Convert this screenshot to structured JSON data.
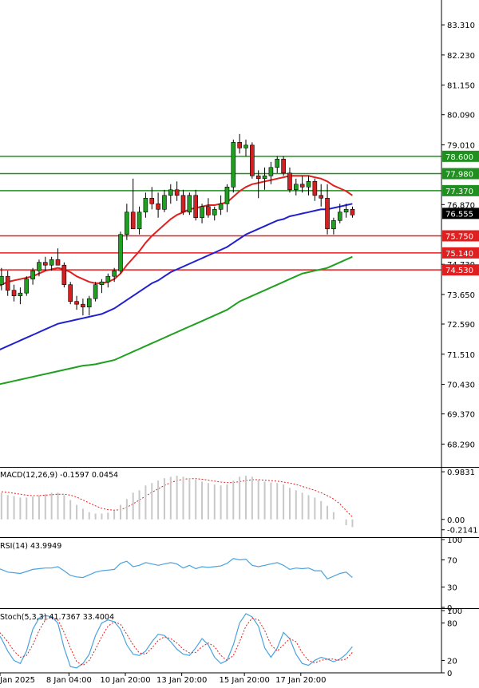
{
  "colors": {
    "candle_bull": "#20a020",
    "candle_bear": "#d42020",
    "ma_fast": "#e02020",
    "ma_mid": "#2020d0",
    "ma_slow": "#20a020",
    "resistance_line": "#1f8f1f",
    "support_line": "#e02020",
    "macd_hist": "#c8c8c8",
    "macd_signal": "#e02020",
    "rsi_line": "#4aa3df",
    "stoch_main": "#4aa3df",
    "stoch_signal": "#e02020",
    "axis": "#000000",
    "price_tag_bg": "#000000"
  },
  "chart_data": [
    {
      "type": "candlestick",
      "ylim": [
        67.5,
        84.2
      ],
      "yticks": [
        "83.310",
        "82.230",
        "81.150",
        "80.090",
        "79.010",
        "76.870",
        "74.730",
        "73.650",
        "72.590",
        "71.510",
        "70.430",
        "69.370",
        "68.290"
      ],
      "current_price": "76.555",
      "resistance_levels": [
        "78.600",
        "77.980",
        "77.370"
      ],
      "support_levels": [
        "75.750",
        "75.140",
        "74.530"
      ],
      "x_labels": [
        "Jan 2025",
        "8 Jan 04:00",
        "10 Jan 20:00",
        "13 Jan 20:00",
        "15 Jan 20:00",
        "17 Jan 20:00"
      ],
      "candles": [
        [
          73.9,
          74.2,
          73.5,
          74.0
        ],
        [
          74.0,
          74.6,
          73.8,
          74.3
        ],
        [
          74.3,
          74.5,
          73.6,
          73.8
        ],
        [
          73.8,
          74.0,
          73.4,
          73.6
        ],
        [
          73.6,
          73.9,
          73.3,
          73.7
        ],
        [
          73.7,
          74.3,
          73.6,
          74.2
        ],
        [
          74.2,
          74.6,
          74.0,
          74.5
        ],
        [
          74.5,
          74.9,
          74.3,
          74.8
        ],
        [
          74.8,
          75.0,
          74.5,
          74.7
        ],
        [
          74.7,
          75.0,
          74.5,
          74.9
        ],
        [
          74.9,
          75.3,
          74.7,
          74.7
        ],
        [
          74.7,
          74.8,
          73.9,
          74.0
        ],
        [
          74.0,
          74.1,
          73.3,
          73.4
        ],
        [
          73.4,
          73.6,
          73.1,
          73.3
        ],
        [
          73.3,
          73.5,
          72.9,
          73.2
        ],
        [
          73.2,
          73.6,
          72.9,
          73.5
        ],
        [
          73.5,
          74.1,
          73.4,
          74.0
        ],
        [
          74.0,
          74.2,
          73.7,
          74.1
        ],
        [
          74.1,
          74.4,
          73.9,
          74.3
        ],
        [
          74.3,
          74.6,
          74.1,
          74.5
        ],
        [
          74.5,
          75.9,
          74.4,
          75.8
        ],
        [
          75.8,
          76.9,
          75.6,
          76.6
        ],
        [
          76.6,
          77.8,
          76.0,
          76.0
        ],
        [
          76.0,
          76.8,
          75.8,
          76.6
        ],
        [
          76.6,
          77.3,
          76.4,
          77.1
        ],
        [
          77.1,
          77.5,
          76.7,
          76.9
        ],
        [
          76.9,
          77.3,
          76.4,
          76.7
        ],
        [
          76.7,
          77.4,
          76.6,
          77.2
        ],
        [
          77.2,
          77.6,
          76.9,
          77.4
        ],
        [
          77.4,
          77.7,
          77.0,
          77.2
        ],
        [
          77.2,
          77.4,
          76.5,
          76.6
        ],
        [
          76.6,
          77.3,
          76.5,
          77.2
        ],
        [
          77.2,
          77.4,
          76.3,
          76.4
        ],
        [
          76.4,
          76.9,
          76.2,
          76.8
        ],
        [
          76.8,
          77.1,
          76.4,
          76.5
        ],
        [
          76.5,
          76.8,
          76.3,
          76.7
        ],
        [
          76.7,
          77.2,
          76.5,
          76.9
        ],
        [
          76.9,
          77.6,
          76.6,
          77.5
        ],
        [
          77.5,
          79.2,
          77.3,
          79.1
        ],
        [
          79.1,
          79.4,
          78.7,
          78.9
        ],
        [
          78.9,
          79.2,
          78.6,
          79.0
        ],
        [
          79.0,
          79.1,
          77.8,
          77.9
        ],
        [
          77.9,
          78.1,
          77.1,
          77.8
        ],
        [
          77.8,
          78.2,
          77.4,
          77.9
        ],
        [
          77.9,
          78.4,
          77.6,
          78.2
        ],
        [
          78.2,
          78.6,
          78.0,
          78.5
        ],
        [
          78.5,
          78.6,
          77.9,
          78.0
        ],
        [
          78.0,
          78.2,
          77.3,
          77.4
        ],
        [
          77.4,
          77.8,
          77.2,
          77.6
        ],
        [
          77.6,
          77.9,
          77.3,
          77.5
        ],
        [
          77.5,
          77.9,
          77.2,
          77.7
        ],
        [
          77.7,
          77.8,
          77.0,
          77.2
        ],
        [
          77.2,
          77.6,
          76.8,
          77.1
        ],
        [
          77.1,
          77.6,
          75.8,
          76.0
        ],
        [
          76.0,
          76.4,
          75.8,
          76.3
        ],
        [
          76.3,
          76.9,
          76.2,
          76.6
        ],
        [
          76.6,
          76.9,
          76.4,
          76.7
        ],
        [
          76.7,
          76.8,
          76.4,
          76.5
        ]
      ],
      "ma_fast": [
        73.9,
        74.0,
        74.1,
        74.15,
        74.2,
        74.25,
        74.3,
        74.4,
        74.5,
        74.55,
        74.6,
        74.55,
        74.45,
        74.3,
        74.2,
        74.1,
        74.05,
        74.05,
        74.1,
        74.2,
        74.4,
        74.7,
        74.95,
        75.2,
        75.5,
        75.75,
        75.95,
        76.15,
        76.35,
        76.5,
        76.6,
        76.7,
        76.75,
        76.8,
        76.85,
        76.85,
        76.9,
        76.95,
        77.15,
        77.35,
        77.5,
        77.6,
        77.65,
        77.7,
        77.75,
        77.8,
        77.85,
        77.9,
        77.9,
        77.9,
        77.9,
        77.85,
        77.8,
        77.7,
        77.55,
        77.45,
        77.35,
        77.2
      ],
      "ma_mid": [
        71.6,
        71.7,
        71.8,
        71.9,
        72.0,
        72.1,
        72.2,
        72.3,
        72.4,
        72.5,
        72.6,
        72.65,
        72.7,
        72.75,
        72.8,
        72.85,
        72.9,
        72.95,
        73.05,
        73.15,
        73.3,
        73.45,
        73.6,
        73.75,
        73.9,
        74.05,
        74.15,
        74.3,
        74.45,
        74.55,
        74.65,
        74.75,
        74.85,
        74.95,
        75.05,
        75.15,
        75.25,
        75.35,
        75.5,
        75.65,
        75.8,
        75.9,
        76.0,
        76.1,
        76.2,
        76.3,
        76.35,
        76.45,
        76.5,
        76.55,
        76.6,
        76.65,
        76.7,
        76.7,
        76.75,
        76.8,
        76.85,
        76.9
      ],
      "ma_slow": [
        70.4,
        70.45,
        70.5,
        70.55,
        70.6,
        70.65,
        70.7,
        70.75,
        70.8,
        70.85,
        70.9,
        70.95,
        71.0,
        71.05,
        71.1,
        71.12,
        71.15,
        71.2,
        71.25,
        71.3,
        71.4,
        71.5,
        71.6,
        71.7,
        71.8,
        71.9,
        72.0,
        72.1,
        72.2,
        72.3,
        72.4,
        72.5,
        72.6,
        72.7,
        72.8,
        72.9,
        73.0,
        73.1,
        73.25,
        73.4,
        73.5,
        73.6,
        73.7,
        73.8,
        73.9,
        74.0,
        74.1,
        74.2,
        74.3,
        74.4,
        74.45,
        74.5,
        74.55,
        74.6,
        74.7,
        74.8,
        74.9,
        75.0
      ]
    },
    {
      "type": "bar",
      "name": "MACD",
      "label": "MACD(12,26,9) -0.1597 0.0454",
      "ylim": [
        -0.35,
        1.05
      ],
      "yticks": [
        "0.9831",
        "0.00",
        "-0.2141"
      ],
      "histogram": [
        0.55,
        0.55,
        0.5,
        0.48,
        0.45,
        0.45,
        0.47,
        0.5,
        0.52,
        0.55,
        0.55,
        0.5,
        0.4,
        0.3,
        0.22,
        0.15,
        0.12,
        0.12,
        0.14,
        0.18,
        0.3,
        0.42,
        0.55,
        0.6,
        0.7,
        0.75,
        0.8,
        0.85,
        0.88,
        0.9,
        0.88,
        0.85,
        0.82,
        0.78,
        0.75,
        0.72,
        0.7,
        0.72,
        0.8,
        0.88,
        0.9,
        0.88,
        0.82,
        0.78,
        0.76,
        0.75,
        0.72,
        0.65,
        0.6,
        0.55,
        0.5,
        0.45,
        0.38,
        0.28,
        0.15,
        0.0,
        -0.12,
        -0.16
      ],
      "signal": [
        0.58,
        0.57,
        0.56,
        0.54,
        0.52,
        0.5,
        0.49,
        0.49,
        0.5,
        0.51,
        0.52,
        0.52,
        0.5,
        0.46,
        0.4,
        0.34,
        0.28,
        0.23,
        0.2,
        0.19,
        0.2,
        0.25,
        0.32,
        0.4,
        0.48,
        0.56,
        0.63,
        0.7,
        0.76,
        0.8,
        0.83,
        0.84,
        0.84,
        0.83,
        0.81,
        0.79,
        0.77,
        0.76,
        0.76,
        0.78,
        0.8,
        0.82,
        0.82,
        0.81,
        0.8,
        0.79,
        0.77,
        0.75,
        0.72,
        0.68,
        0.64,
        0.6,
        0.55,
        0.49,
        0.42,
        0.32,
        0.18,
        0.05
      ]
    },
    {
      "type": "line",
      "name": "RSI",
      "label": "RSI(14) 43.9949",
      "ylim": [
        0,
        100
      ],
      "yticks": [
        "100",
        "70",
        "30",
        "0"
      ],
      "values": [
        58,
        56,
        52,
        51,
        50,
        53,
        56,
        57,
        58,
        58,
        60,
        54,
        47,
        45,
        44,
        48,
        52,
        54,
        55,
        56,
        65,
        68,
        60,
        62,
        66,
        64,
        62,
        64,
        66,
        64,
        58,
        62,
        57,
        60,
        59,
        60,
        61,
        65,
        72,
        70,
        71,
        62,
        60,
        62,
        64,
        66,
        62,
        56,
        58,
        57,
        58,
        54,
        54,
        42,
        46,
        50,
        52,
        44
      ]
    },
    {
      "type": "line",
      "name": "Stoch",
      "label": "Stoch(5,3,3) 41.7367 33.4004",
      "ylim": [
        0,
        100
      ],
      "yticks": [
        "100",
        "80",
        "20",
        "0"
      ],
      "main": [
        70,
        55,
        35,
        20,
        15,
        35,
        70,
        88,
        92,
        90,
        80,
        40,
        10,
        8,
        15,
        30,
        60,
        80,
        85,
        82,
        70,
        45,
        30,
        28,
        35,
        50,
        62,
        60,
        50,
        38,
        30,
        28,
        40,
        55,
        45,
        25,
        15,
        20,
        45,
        80,
        95,
        90,
        75,
        40,
        25,
        40,
        65,
        55,
        30,
        15,
        12,
        20,
        25,
        22,
        18,
        22,
        30,
        42
      ],
      "signal": [
        72,
        62,
        50,
        35,
        25,
        28,
        45,
        68,
        85,
        90,
        85,
        65,
        40,
        18,
        12,
        20,
        38,
        58,
        75,
        82,
        78,
        62,
        45,
        32,
        30,
        40,
        52,
        58,
        55,
        48,
        38,
        32,
        33,
        42,
        48,
        42,
        28,
        20,
        28,
        50,
        75,
        88,
        85,
        68,
        45,
        35,
        45,
        55,
        50,
        32,
        20,
        16,
        20,
        22,
        22,
        20,
        22,
        33
      ]
    }
  ]
}
